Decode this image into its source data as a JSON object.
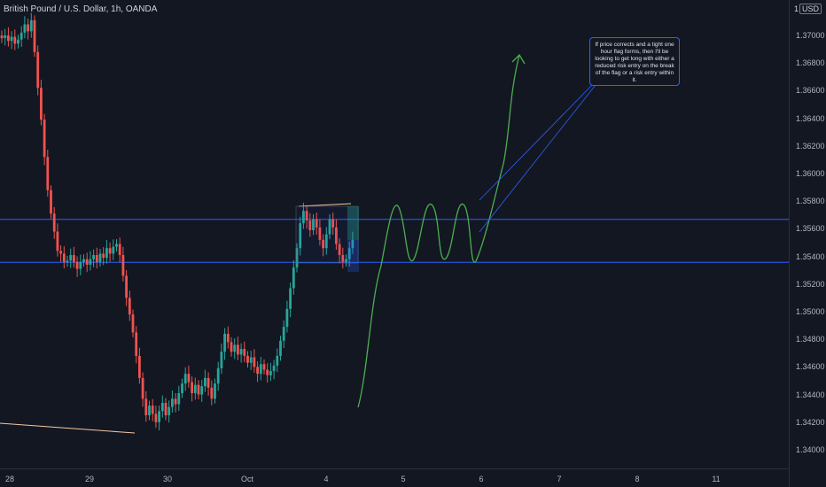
{
  "chart_title": "British Pound / U.S. Dollar, 1h, OANDA",
  "currency": {
    "prefix": "1",
    "label": "USD"
  },
  "annotation": "If price corrects and a tight one hour flag forms, then I'll be looking to get long with either a reduced risk entry on the break of the flag or a risk entry within it.",
  "colors": {
    "background": "#131722",
    "up": "#26a69a",
    "down": "#ef5350",
    "level": "#2962ff",
    "projection": "#4caf50",
    "trendline": "#f7c8a3"
  },
  "chart_data": {
    "type": "candlestick",
    "title": "British Pound / U.S. Dollar, 1h, OANDA",
    "ylim": [
      1.339,
      1.3712
    ],
    "y_ticks": [
      "1.37000",
      "1.36800",
      "1.36600",
      "1.36400",
      "1.36200",
      "1.36000",
      "1.35800",
      "1.35600",
      "1.35400",
      "1.35200",
      "1.35000",
      "1.34800",
      "1.34600",
      "1.34400",
      "1.34200",
      "1.34000"
    ],
    "x_ticks": [
      "28",
      "29",
      "30",
      "Oct",
      "4",
      "5",
      "6",
      "7",
      "8",
      "11"
    ],
    "horizontal_levels": [
      1.35668,
      1.35357
    ],
    "candles_close": [
      1.3698,
      1.37,
      1.3696,
      1.3699,
      1.3694,
      1.3697,
      1.3702,
      1.3708,
      1.3703,
      1.3711,
      1.3688,
      1.3662,
      1.3639,
      1.3612,
      1.3588,
      1.3571,
      1.3558,
      1.3544,
      1.3542,
      1.3536,
      1.3537,
      1.3541,
      1.3536,
      1.3531,
      1.3536,
      1.3538,
      1.3534,
      1.3538,
      1.3541,
      1.3536,
      1.3542,
      1.3539,
      1.3546,
      1.3542,
      1.3547,
      1.3549,
      1.3541,
      1.3526,
      1.351,
      1.3498,
      1.3485,
      1.3468,
      1.3452,
      1.3437,
      1.3425,
      1.3432,
      1.3426,
      1.342,
      1.3428,
      1.3434,
      1.3425,
      1.3431,
      1.3437,
      1.3433,
      1.3441,
      1.3448,
      1.3455,
      1.3449,
      1.3441,
      1.3447,
      1.344,
      1.3446,
      1.3452,
      1.3445,
      1.3437,
      1.3448,
      1.3459,
      1.3471,
      1.3484,
      1.3478,
      1.3471,
      1.3476,
      1.3469,
      1.3473,
      1.3468,
      1.3463,
      1.3467,
      1.346,
      1.3455,
      1.3462,
      1.3458,
      1.3454,
      1.3457,
      1.3461,
      1.3468,
      1.3479,
      1.3489,
      1.3502,
      1.3517,
      1.3532,
      1.3546,
      1.3564,
      1.3573,
      1.3566,
      1.3559,
      1.3567,
      1.3561,
      1.3552,
      1.3546,
      1.3556,
      1.3567,
      1.3561,
      1.3549,
      1.3541,
      1.3536,
      1.3538,
      1.3546,
      1.3552
    ],
    "trendlines": [
      {
        "label": "lower",
        "x": [
          "27",
          "29.6"
        ],
        "y": [
          1.34238,
          1.34118
        ]
      },
      {
        "label": "flag-top",
        "x": [
          "3.7",
          "4.3"
        ],
        "y": [
          1.35773,
          1.35803
        ]
      }
    ],
    "projection_path": "zigzag consolidation near 1.355-1.357 then rally toward 1.369"
  }
}
